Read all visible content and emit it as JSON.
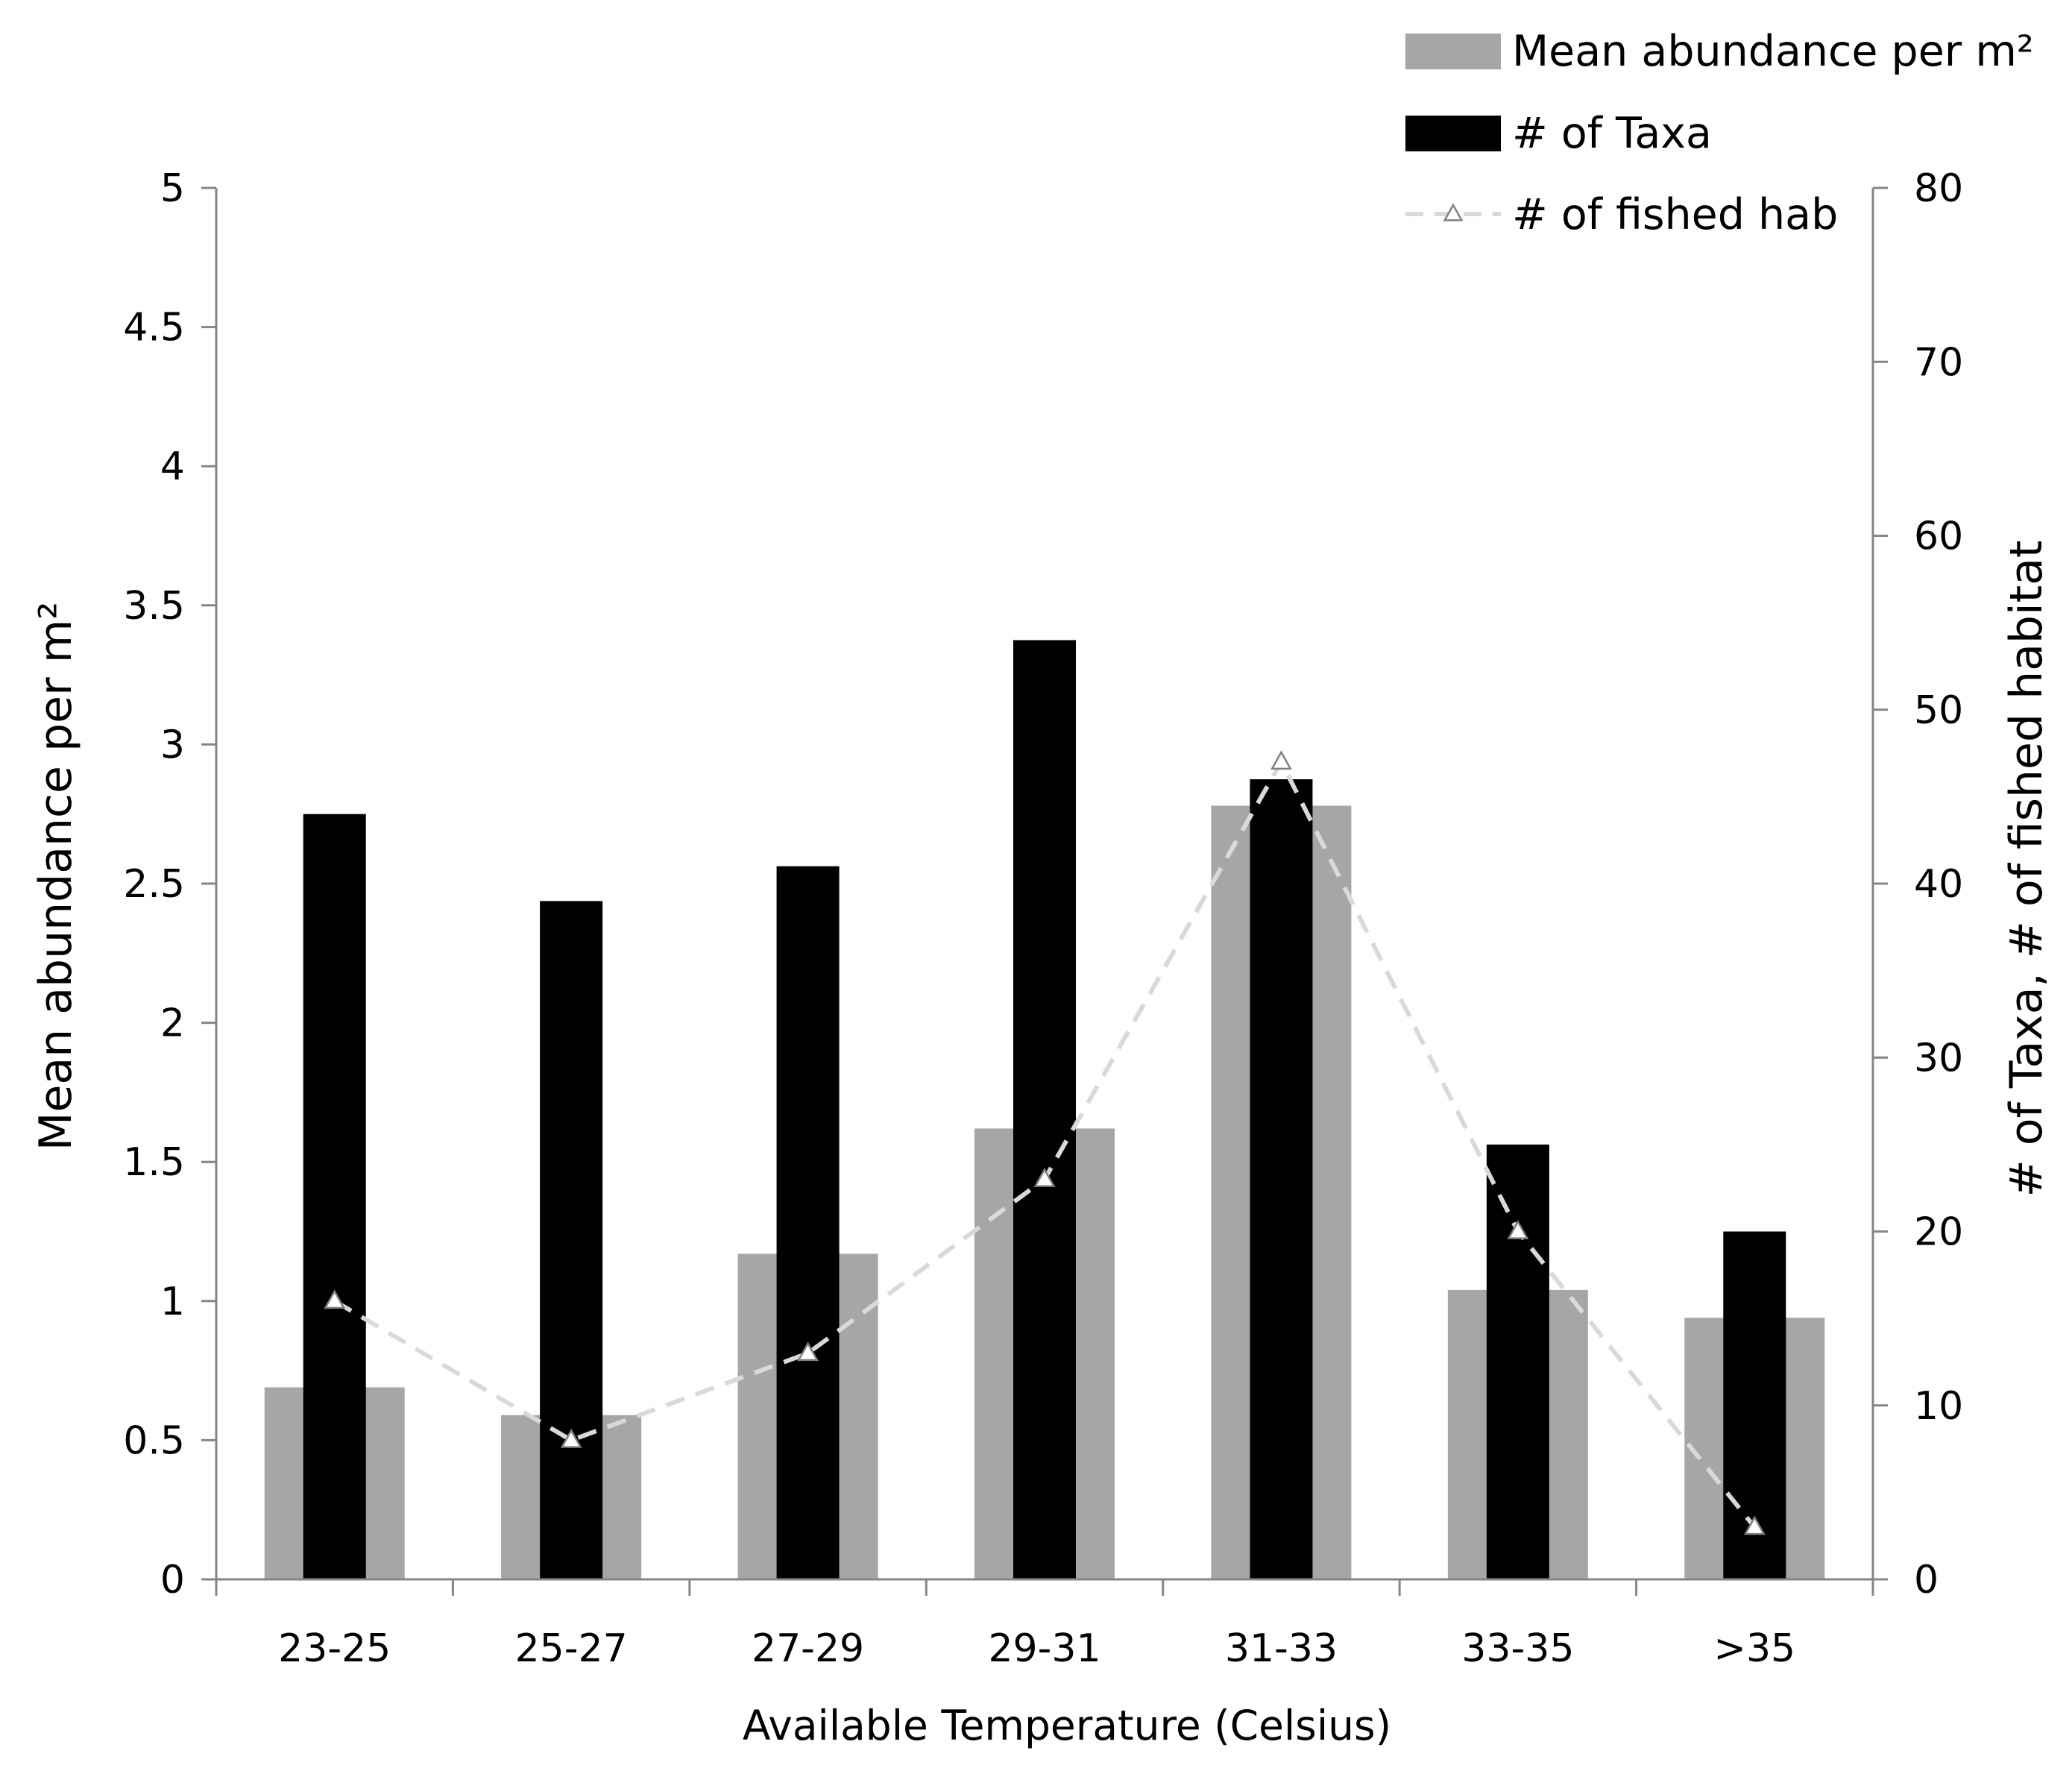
{
  "chart_data": {
    "type": "bar",
    "categories": [
      "23-25",
      "25-27",
      "27-29",
      "29-31",
      "31-33",
      "33-35",
      ">35"
    ],
    "series": [
      {
        "name": "Mean abundance per m²",
        "kind": "bar",
        "axis": "left",
        "color": "#a6a6a6",
        "values": [
          0.69,
          0.59,
          1.17,
          1.62,
          2.78,
          1.04,
          0.94
        ]
      },
      {
        "name": "# of Taxa",
        "kind": "bar",
        "axis": "right",
        "color": "#000000",
        "values": [
          44,
          39,
          41,
          54,
          46,
          25,
          20
        ]
      },
      {
        "name": "# of fished hab",
        "kind": "line",
        "axis": "right",
        "color": "#d9d9d9",
        "line_style": "dashed",
        "marker": "open-triangle",
        "values": [
          16,
          8,
          13,
          23,
          47,
          20,
          3
        ]
      }
    ],
    "xlabel": "Available Temperature (Celsius)",
    "ylabel": "Mean abundance per m²",
    "y2label": "# of Taxa, # of fished habitat",
    "ylim": [
      0,
      5
    ],
    "yticks": [
      "0",
      "0.5",
      "1",
      "1.5",
      "2",
      "2.5",
      "3",
      "3.5",
      "4",
      "4.5",
      "5"
    ],
    "y2lim": [
      0,
      80
    ],
    "y2ticks": [
      "0",
      "10",
      "20",
      "30",
      "40",
      "50",
      "60",
      "70",
      "80"
    ],
    "grid": false,
    "legend_position": "top-right"
  }
}
